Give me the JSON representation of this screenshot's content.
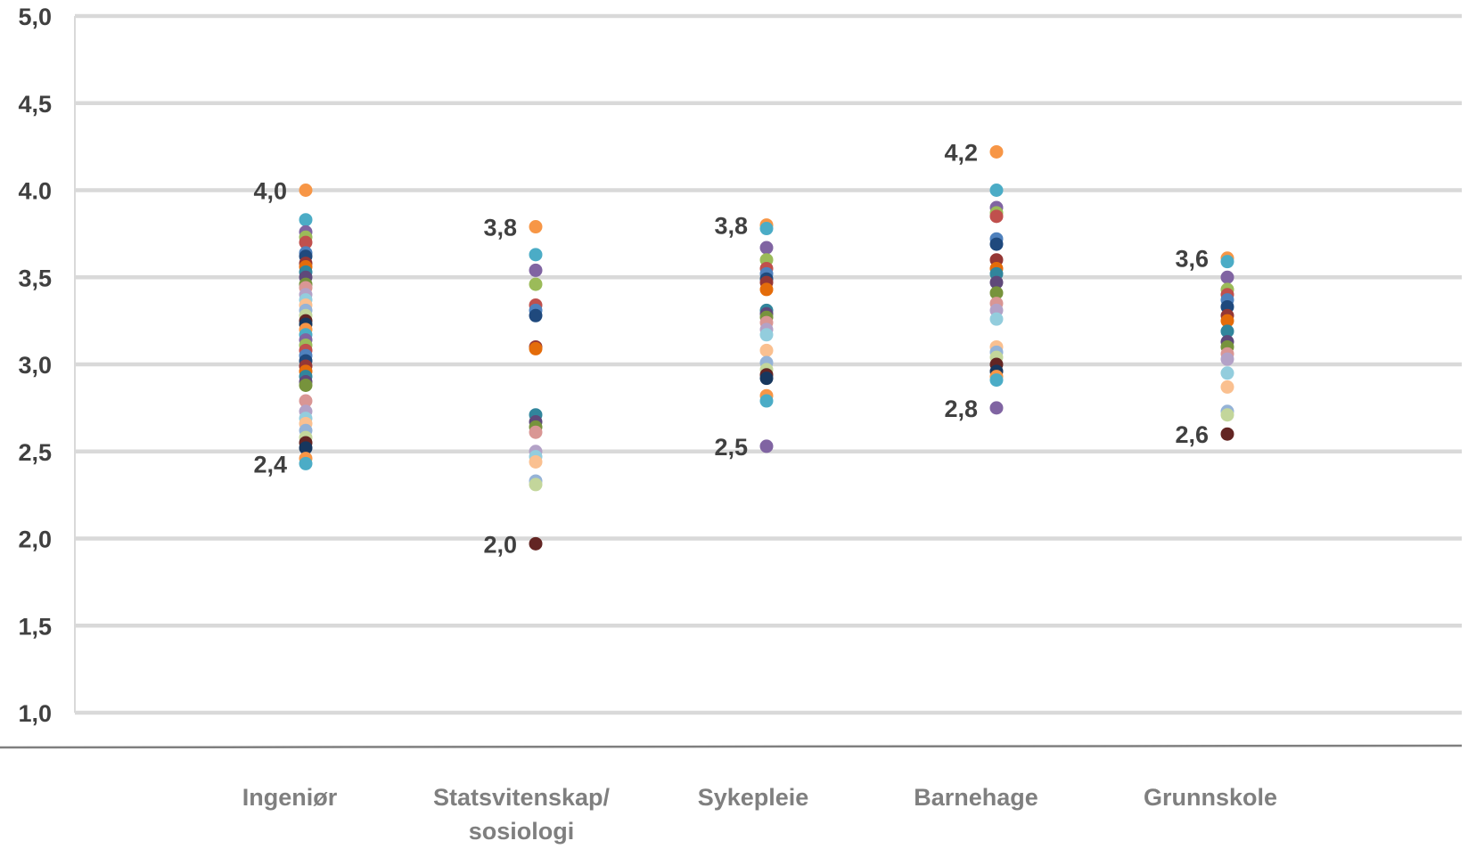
{
  "chart_data": {
    "type": "scatter",
    "ylim": [
      1.0,
      5.0
    ],
    "yticks": [
      "1,0",
      "1,5",
      "2,0",
      "2,5",
      "3,0",
      "3,5",
      "4.0",
      "4,5",
      "5,0"
    ],
    "grid": true,
    "categories": [
      {
        "lines": [
          "Ingeniør"
        ]
      },
      {
        "lines": [
          "Statsvitenskap/",
          "sosiologi"
        ]
      },
      {
        "lines": [
          "Sykepleie"
        ]
      },
      {
        "lines": [
          "Barnehage"
        ]
      },
      {
        "lines": [
          "Grunnskole"
        ]
      }
    ],
    "palette": [
      "#f79646",
      "#4bacc6",
      "#8064a2",
      "#9bbb59",
      "#c0504d",
      "#4f81bd",
      "#1f497d",
      "#953735",
      "#e46c0a",
      "#31859c",
      "#5f497a",
      "#77933c",
      "#d99694",
      "#b3a2c7",
      "#93cddd",
      "#fac090",
      "#95b3d7",
      "#c3d69b",
      "#632523",
      "#17375e"
    ],
    "series": [
      {
        "values": [
          4.0,
          3.83,
          3.76,
          3.73,
          3.7,
          3.64,
          3.62,
          3.58,
          3.56,
          3.53,
          3.5,
          3.46,
          3.44,
          3.4,
          3.37,
          3.34,
          3.31,
          3.28,
          3.25,
          3.23,
          3.2,
          3.17,
          3.14,
          3.11,
          3.08,
          3.05,
          3.02,
          2.99,
          2.96,
          2.93,
          2.9,
          2.88,
          2.79,
          2.73,
          2.69,
          2.66,
          2.62,
          2.58,
          2.55,
          2.52,
          2.46,
          2.43
        ],
        "labels": [
          {
            "value": 4.0,
            "text": "4,0"
          },
          {
            "value": 2.43,
            "text": "2,4"
          }
        ]
      },
      {
        "values": [
          3.79,
          3.63,
          3.54,
          3.46,
          3.34,
          3.31,
          3.28,
          3.1,
          3.09,
          2.71,
          2.67,
          2.64,
          2.61,
          2.5,
          2.47,
          2.44,
          2.33,
          2.31,
          1.97
        ],
        "labels": [
          {
            "value": 3.79,
            "text": "3,8"
          },
          {
            "value": 1.97,
            "text": "2,0"
          }
        ]
      },
      {
        "values": [
          3.8,
          3.78,
          3.67,
          3.6,
          3.55,
          3.52,
          3.49,
          3.47,
          3.43,
          3.31,
          3.29,
          3.27,
          3.24,
          3.2,
          3.17,
          3.08,
          3.01,
          2.97,
          2.94,
          2.92,
          2.82,
          2.79,
          2.53
        ],
        "labels": [
          {
            "value": 3.8,
            "text": "3,8"
          },
          {
            "value": 2.53,
            "text": "2,5"
          }
        ]
      },
      {
        "values": [
          4.22,
          4.0,
          3.9,
          3.87,
          3.85,
          3.72,
          3.69,
          3.6,
          3.55,
          3.52,
          3.47,
          3.41,
          3.35,
          3.31,
          3.26,
          3.1,
          3.07,
          3.04,
          3.0,
          2.96,
          2.93,
          2.91,
          2.75
        ],
        "labels": [
          {
            "value": 4.22,
            "text": "4,2"
          },
          {
            "value": 2.75,
            "text": "2,8"
          }
        ]
      },
      {
        "values": [
          3.61,
          3.59,
          3.5,
          3.43,
          3.4,
          3.37,
          3.33,
          3.28,
          3.25,
          3.19,
          3.13,
          3.1,
          3.06,
          3.03,
          2.95,
          2.87,
          2.73,
          2.71,
          2.6
        ],
        "labels": [
          {
            "value": 3.61,
            "text": "3,6"
          },
          {
            "value": 2.6,
            "text": "2,6"
          }
        ]
      }
    ]
  }
}
